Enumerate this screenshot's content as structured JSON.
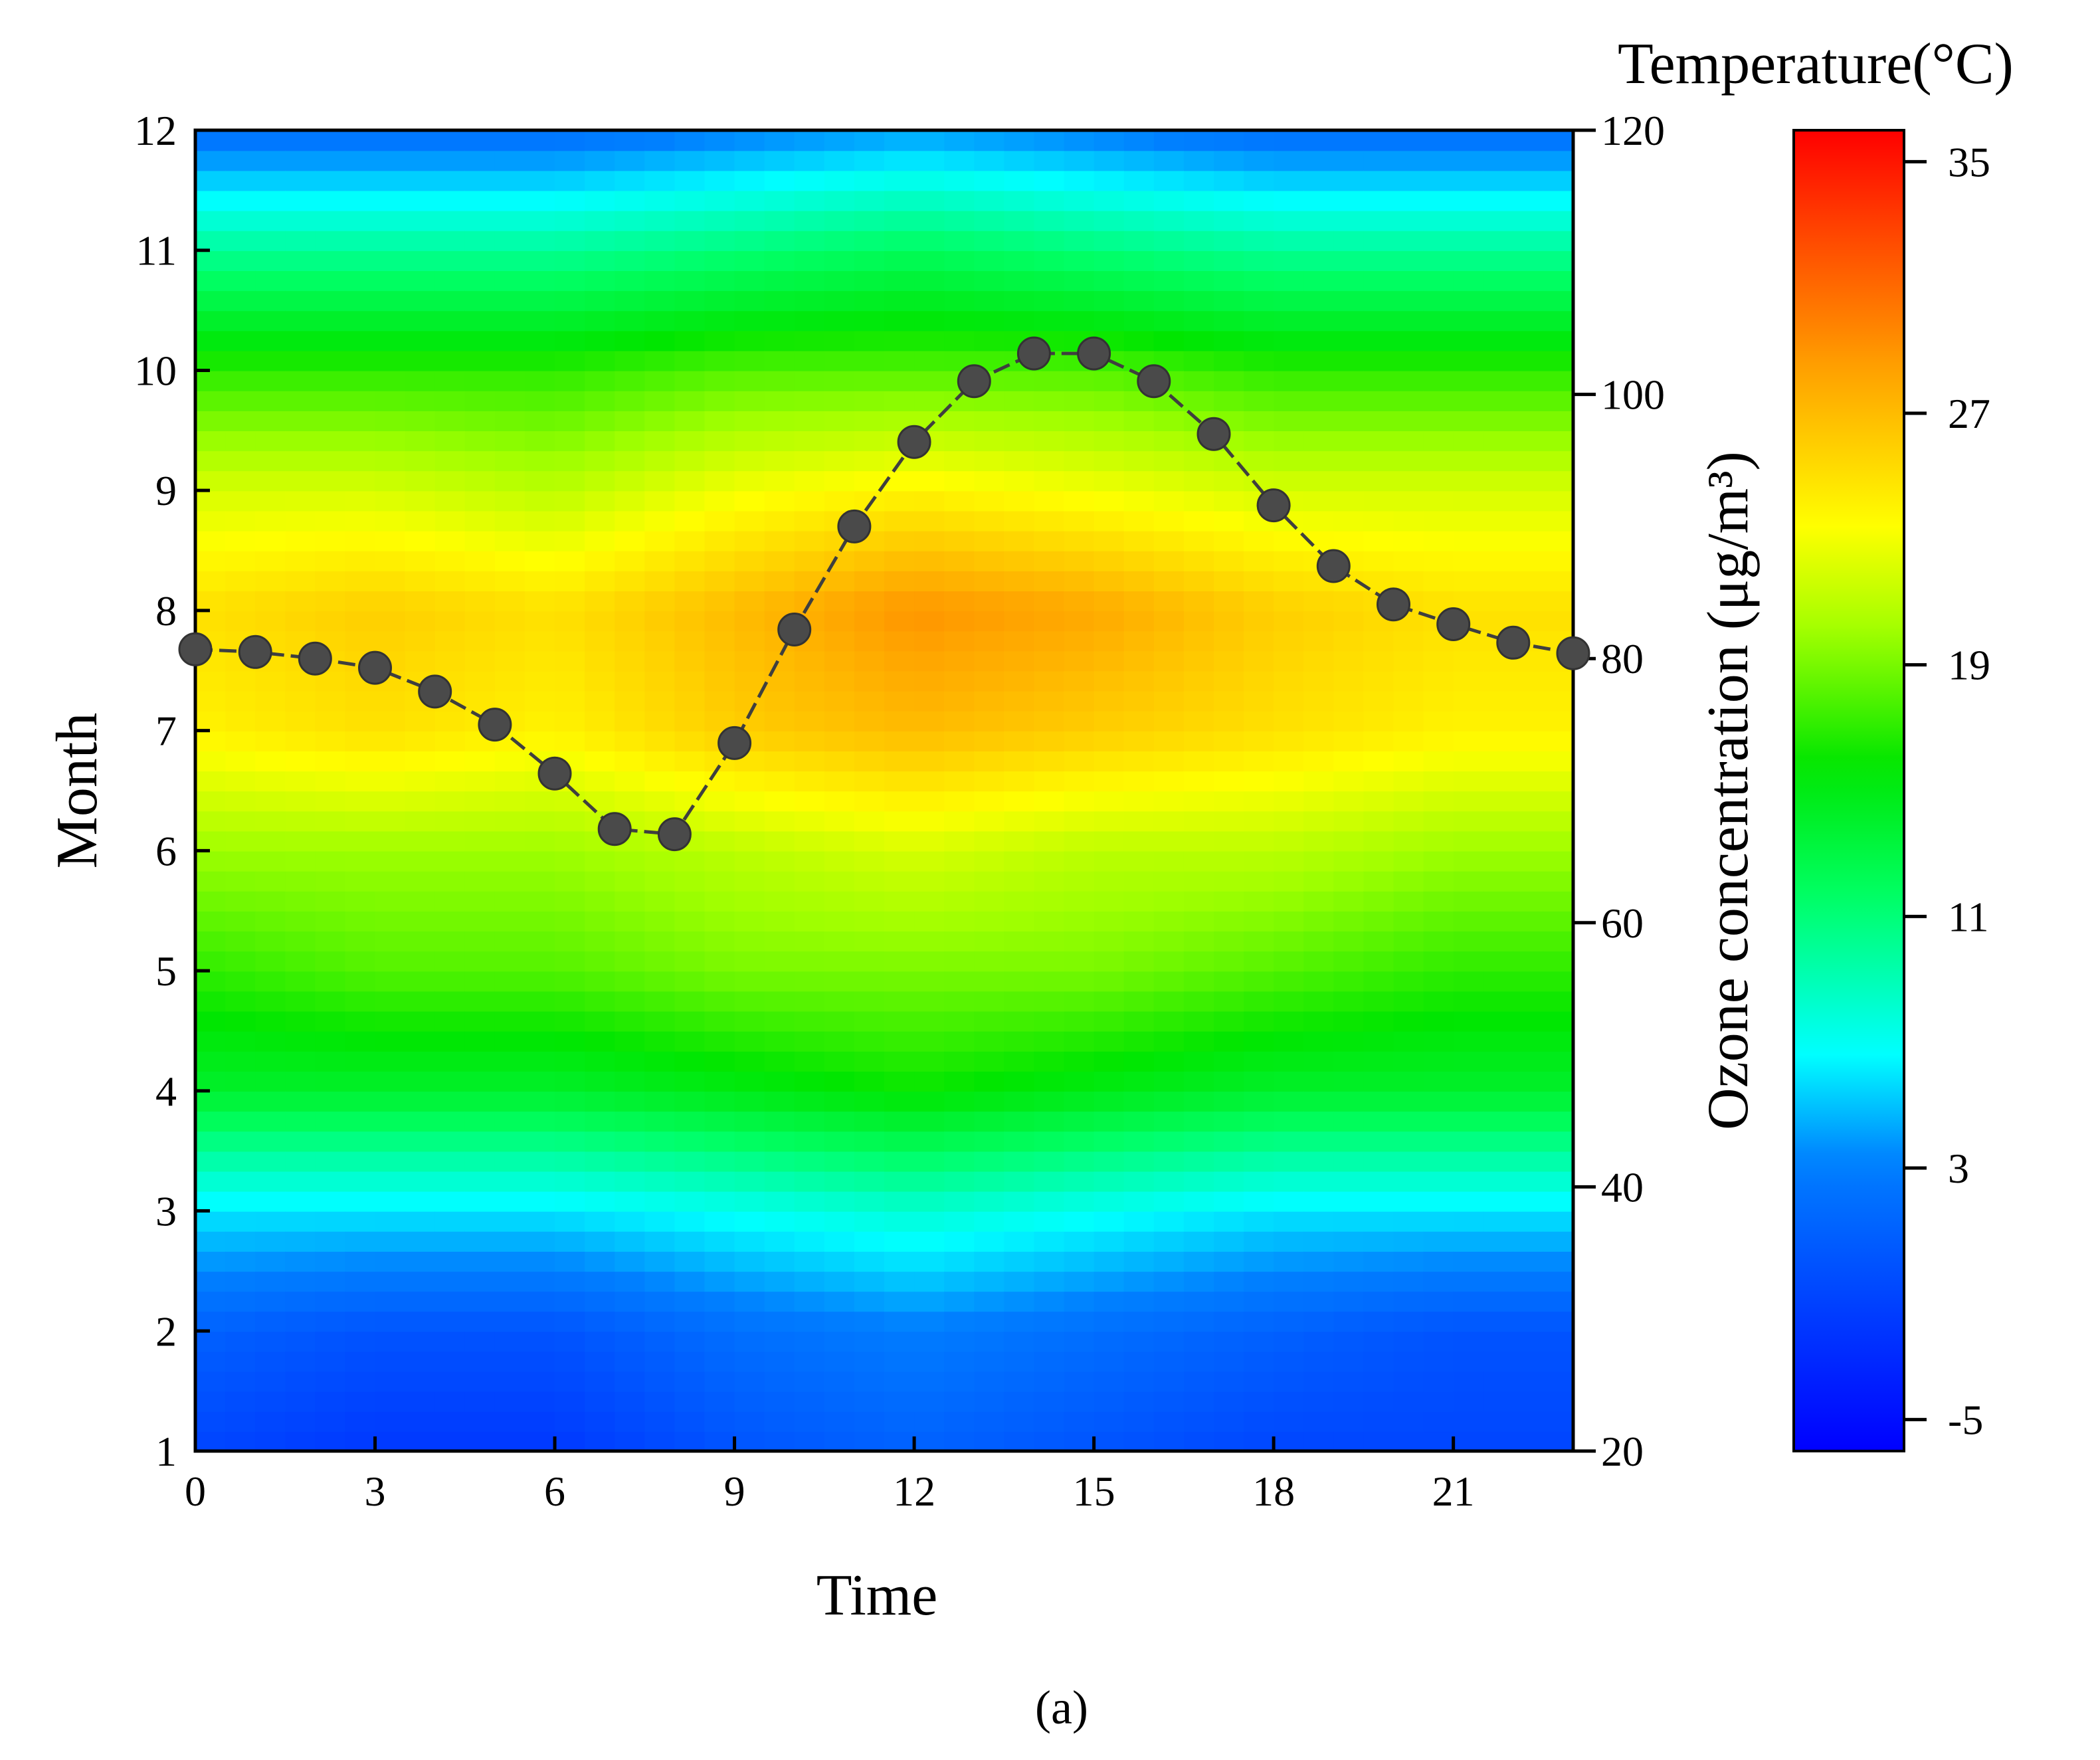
{
  "chart_data": {
    "type": "heatmap",
    "panel_label": "(a)",
    "xlabel": "Time",
    "ylabel": "Month",
    "y2label": "Ozone concentration (μg/m³)",
    "colorbar_title": "Temperature(°C)",
    "xlim": [
      0,
      23
    ],
    "ylim": [
      1,
      12
    ],
    "y2lim": [
      20,
      120
    ],
    "colorbar_range": [
      -6,
      36
    ],
    "x_ticks": [
      0,
      3,
      6,
      9,
      12,
      15,
      18,
      21
    ],
    "x_tick_labels": [
      "0",
      "3",
      "6",
      "9",
      "12",
      "15",
      "18",
      "21"
    ],
    "y_ticks": [
      1,
      2,
      3,
      4,
      5,
      6,
      7,
      8,
      9,
      10,
      11,
      12
    ],
    "y_tick_labels": [
      "1",
      "2",
      "3",
      "4",
      "5",
      "6",
      "7",
      "8",
      "9",
      "10",
      "11",
      "12"
    ],
    "y2_ticks": [
      20,
      40,
      60,
      80,
      100,
      120
    ],
    "y2_tick_labels": [
      "20",
      "40",
      "60",
      "80",
      "100",
      "120"
    ],
    "colorbar_ticks": [
      -5,
      3,
      11,
      19,
      27,
      35
    ],
    "colorbar_tick_labels": [
      "-5",
      "3",
      "11",
      "19",
      "27",
      "35"
    ],
    "heatmap": {
      "hours": [
        0,
        3,
        6,
        9,
        12,
        15,
        18,
        21,
        23
      ],
      "months": [
        1,
        2,
        3,
        4,
        5,
        6,
        7,
        8,
        9,
        10,
        11,
        12
      ],
      "temperature": [
        [
          -1,
          -2,
          -2,
          0,
          1,
          0,
          -1,
          -1,
          -1
        ],
        [
          1,
          0,
          0,
          2,
          3,
          2,
          1,
          0,
          0
        ],
        [
          6,
          6,
          6,
          7,
          8,
          7,
          6,
          6,
          6
        ],
        [
          14,
          14,
          14,
          15,
          16,
          15,
          14,
          14,
          14
        ],
        [
          17,
          18,
          18,
          19,
          19,
          19,
          18,
          17,
          17
        ],
        [
          20,
          20,
          20,
          21,
          22,
          21,
          21,
          20,
          20
        ],
        [
          24,
          25,
          24,
          26,
          27,
          26,
          25,
          24,
          24
        ],
        [
          25,
          26,
          25,
          27,
          29,
          28,
          26,
          25,
          25
        ],
        [
          22,
          22,
          21,
          23,
          24,
          23,
          22,
          22,
          22
        ],
        [
          17,
          17,
          17,
          18,
          18,
          18,
          17,
          17,
          17
        ],
        [
          10,
          10,
          10,
          11,
          12,
          11,
          10,
          10,
          10
        ],
        [
          2,
          2,
          2,
          3,
          4,
          3,
          2,
          2,
          2
        ]
      ]
    },
    "series": [
      {
        "name": "Ozone concentration",
        "axis": "y2",
        "x": [
          0,
          1,
          2,
          3,
          4,
          5,
          6,
          7,
          8,
          9,
          10,
          11,
          12,
          13,
          14,
          15,
          16,
          17,
          18,
          19,
          20,
          21,
          22,
          23
        ],
        "values": [
          80.7,
          80.5,
          80.0,
          79.3,
          77.5,
          75.0,
          71.3,
          67.1,
          66.7,
          73.6,
          82.2,
          90.0,
          96.4,
          101.0,
          103.1,
          103.1,
          101.0,
          97.0,
          91.6,
          87.0,
          84.1,
          82.6,
          81.2,
          80.4
        ]
      }
    ]
  }
}
